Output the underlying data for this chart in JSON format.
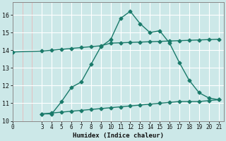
{
  "flat_x": [
    0,
    3,
    4,
    5,
    6,
    7,
    8,
    9,
    10,
    11,
    12,
    13,
    14,
    15,
    16,
    17,
    18,
    19,
    20,
    21
  ],
  "flat_y": [
    13.9,
    13.95,
    14.0,
    14.05,
    14.1,
    14.15,
    14.2,
    14.25,
    14.4,
    14.42,
    14.44,
    14.46,
    14.48,
    14.5,
    14.52,
    14.54,
    14.56,
    14.58,
    14.6,
    14.62
  ],
  "bell_x": [
    3,
    4,
    5,
    6,
    7,
    8,
    9,
    10,
    11,
    12,
    13,
    14,
    15,
    16,
    17,
    18,
    19,
    20,
    21
  ],
  "bell_y": [
    10.4,
    10.4,
    11.1,
    11.9,
    12.2,
    13.2,
    14.2,
    14.6,
    15.8,
    16.2,
    15.5,
    15.0,
    15.1,
    14.4,
    13.3,
    12.3,
    11.6,
    11.3,
    11.2
  ],
  "lower_ref_x": [
    3,
    4,
    5,
    6,
    7,
    8,
    9,
    10,
    11,
    12,
    13,
    14,
    15,
    16,
    17,
    18,
    19,
    20,
    21
  ],
  "lower_ref_y": [
    10.4,
    10.45,
    10.5,
    10.55,
    10.6,
    10.65,
    10.7,
    10.75,
    10.8,
    10.85,
    10.9,
    10.95,
    11.0,
    11.05,
    11.1,
    11.1,
    11.1,
    11.15,
    11.2
  ],
  "line_color": "#1a7a6a",
  "bg_color": "#cce8e8",
  "grid_major_color": "#ffffff",
  "grid_minor_color": "#e8b8b8",
  "xlabel": "Humidex (Indice chaleur)",
  "xlim": [
    0,
    21.5
  ],
  "ylim": [
    10,
    16.7
  ],
  "yticks": [
    10,
    11,
    12,
    13,
    14,
    15,
    16
  ],
  "xticks": [
    0,
    3,
    4,
    5,
    6,
    7,
    8,
    9,
    10,
    11,
    12,
    13,
    14,
    15,
    16,
    17,
    18,
    19,
    20,
    21
  ],
  "marker_size": 2.5,
  "line_width": 1.0,
  "xlabel_fontsize": 6.5,
  "tick_fontsize": 6
}
